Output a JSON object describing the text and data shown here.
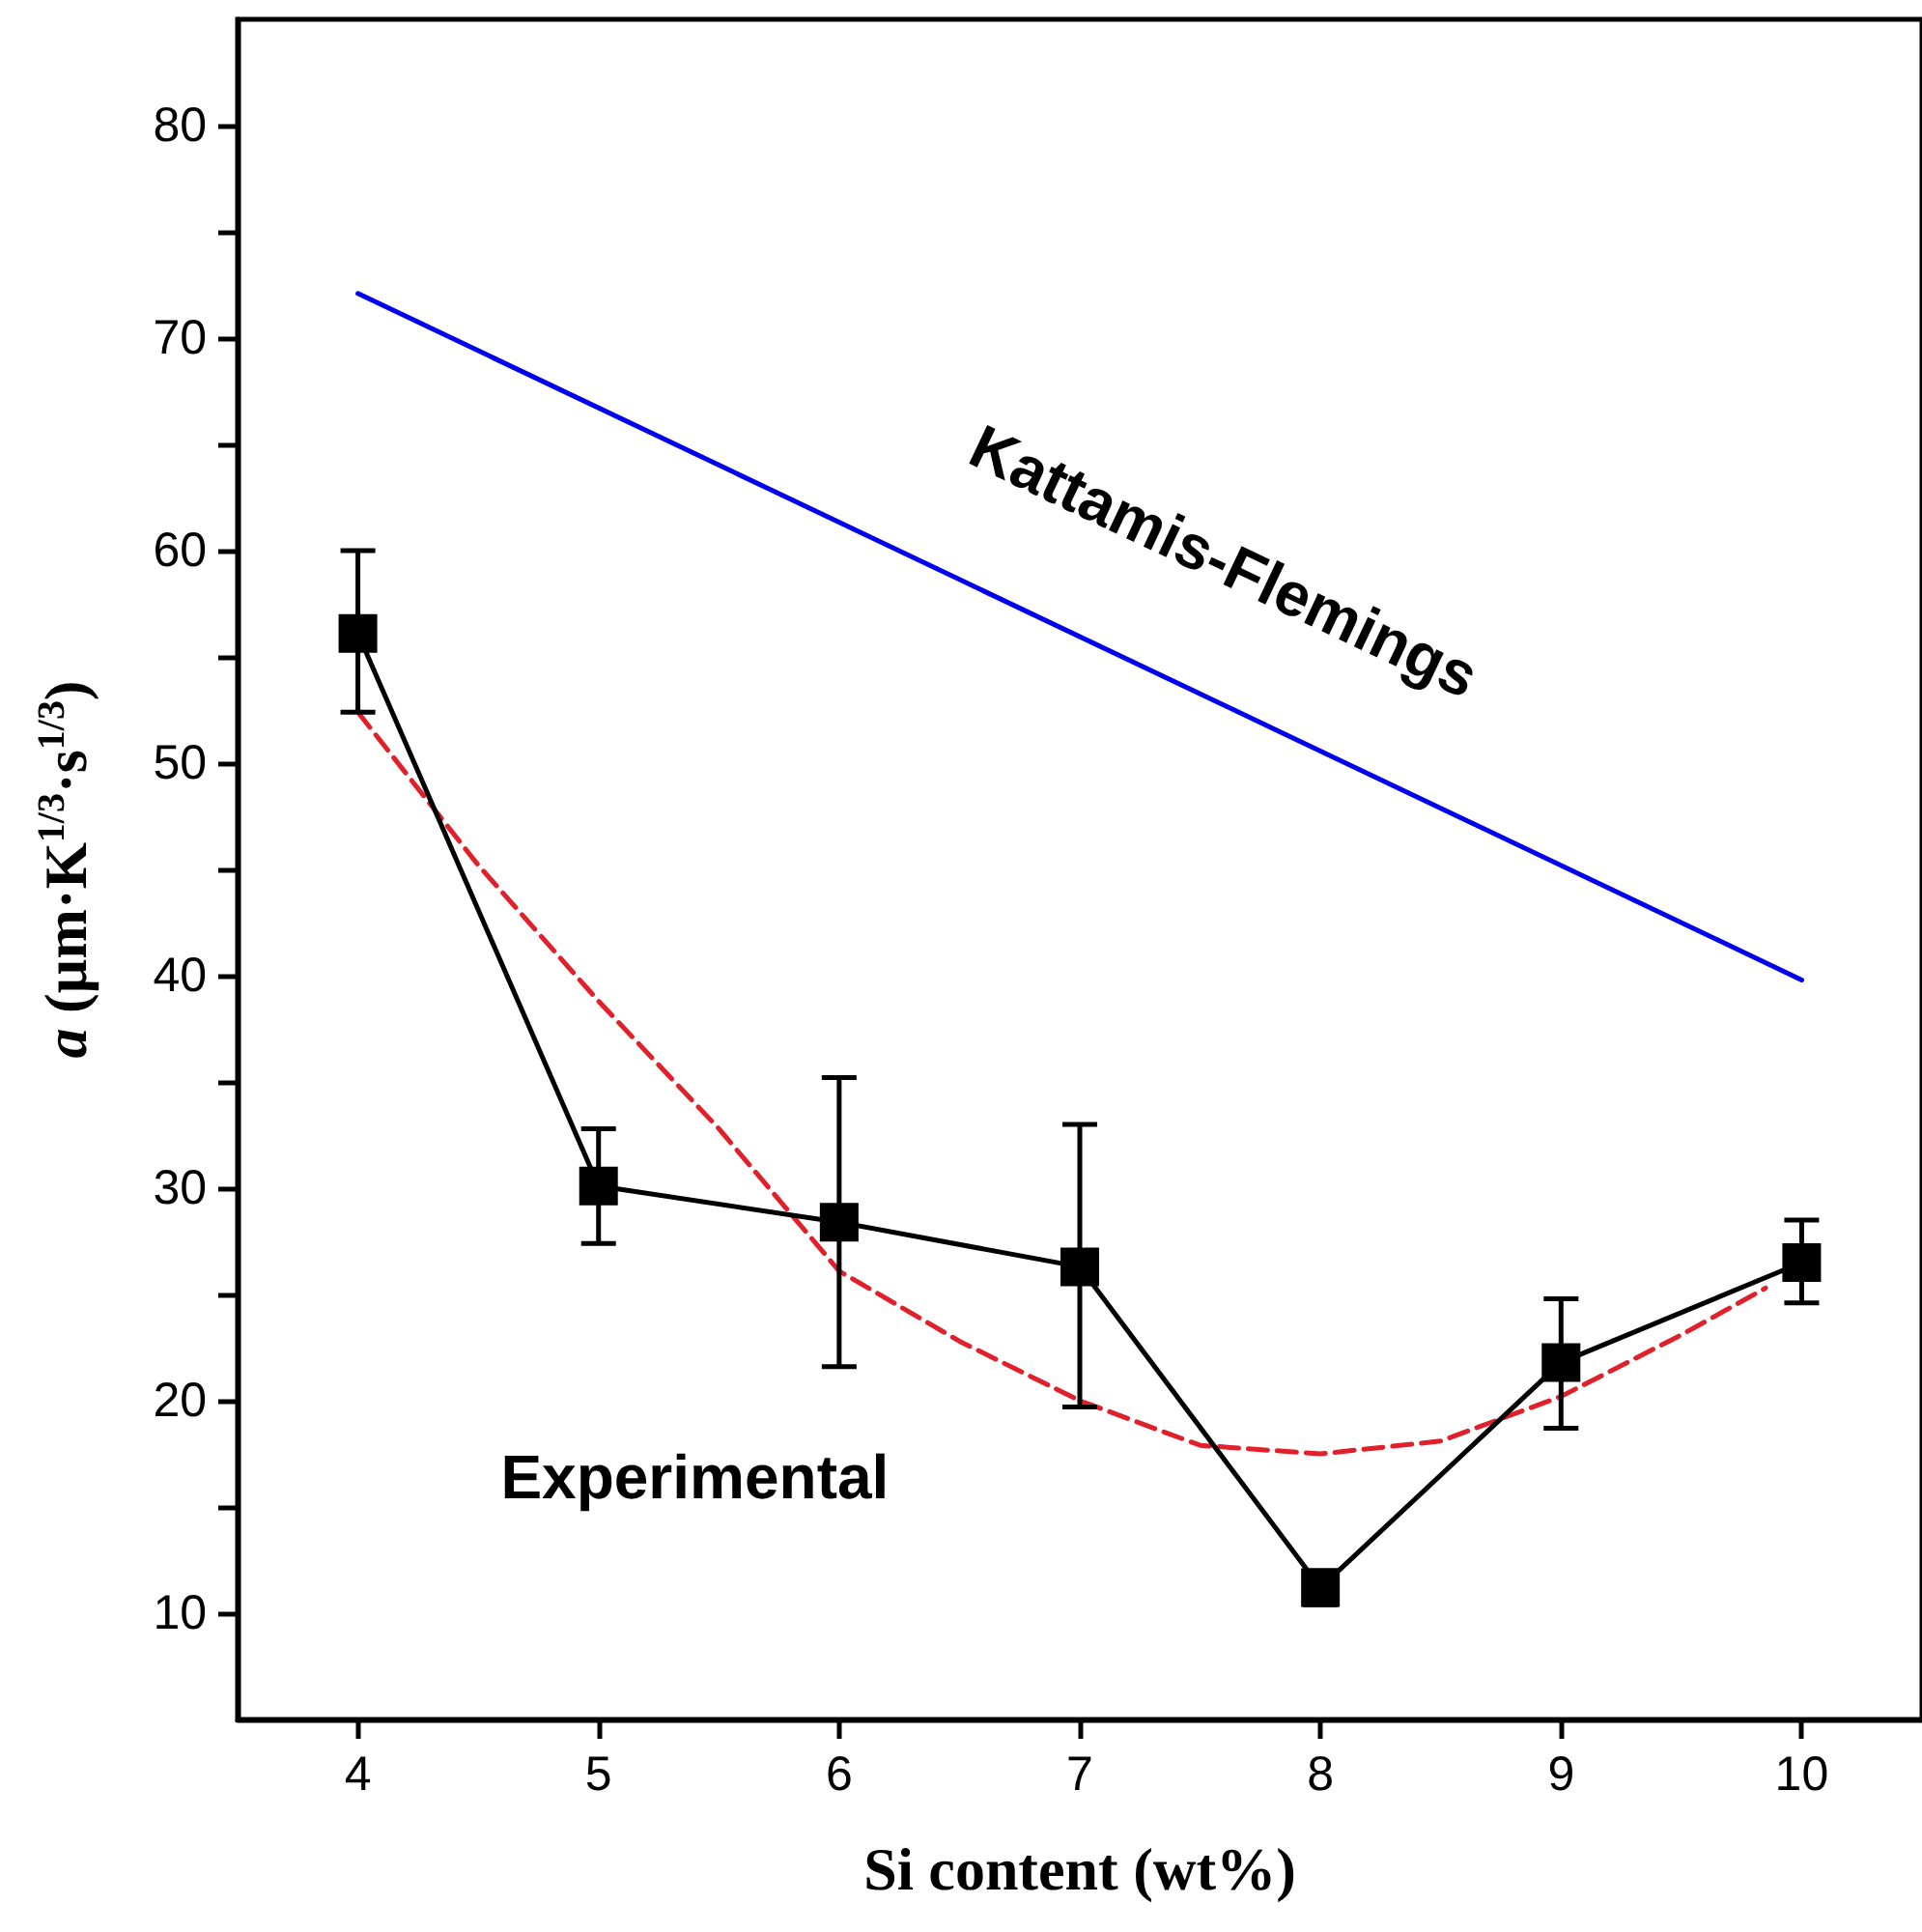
{
  "chart_data": {
    "type": "line",
    "xlabel": "Si content (wt%)",
    "ylabel": "a (µm·K$^{1/3}$·s$^{1/3}$)",
    "xlim": [
      3.5,
      10.5
    ],
    "xticks": [
      4,
      5,
      6,
      7,
      8,
      9,
      10
    ],
    "ylim": [
      5,
      85
    ],
    "yticks": [
      10,
      {
        "value": 15,
        "label": null
      },
      20,
      {
        "value": 25,
        "label": null
      },
      30,
      {
        "value": 35,
        "label": null
      },
      40,
      {
        "value": 45,
        "label": null
      },
      50,
      {
        "value": 55,
        "label": null
      },
      60,
      {
        "value": 65,
        "label": null
      },
      70,
      {
        "value": 75,
        "label": null
      },
      80
    ],
    "grid": false,
    "legend": false,
    "series": [
      {
        "name": "Kattamis-Flemings",
        "color": "#0000ee",
        "x": [
          4,
          10
        ],
        "values": [
          72.1,
          39.8
        ],
        "marker": "none",
        "line_style": "solid"
      },
      {
        "color": "#e0202a",
        "x": [
          4,
          4.5,
          5,
          5.5,
          6,
          6.5,
          7,
          7.5,
          8,
          8.5,
          9,
          9.5,
          9.85
        ],
        "values": [
          52.4,
          45.2,
          38.8,
          32.8,
          26.1,
          22.8,
          20.0,
          17.9,
          17.5,
          18.1,
          20.2,
          23.1,
          25.3
        ],
        "marker": "none",
        "line_style": "dashed"
      },
      {
        "color": "#000000",
        "x": [
          4,
          5,
          6,
          7,
          8,
          9,
          10
        ],
        "values": [
          56.1,
          30.1,
          28.4,
          26.3,
          11.2,
          21.8,
          26.5
        ],
        "marker": "square",
        "line_style": "solid",
        "errors": [
          [
            52.4,
            60.0
          ],
          [
            27.4,
            32.8
          ],
          [
            21.6,
            35.2
          ],
          [
            19.7,
            33.0
          ],
          [
            10.4,
            12.0
          ],
          [
            18.7,
            24.8
          ],
          [
            24.6,
            28.5
          ]
        ]
      }
    ],
    "annotations": [
      "Experimental"
    ]
  }
}
